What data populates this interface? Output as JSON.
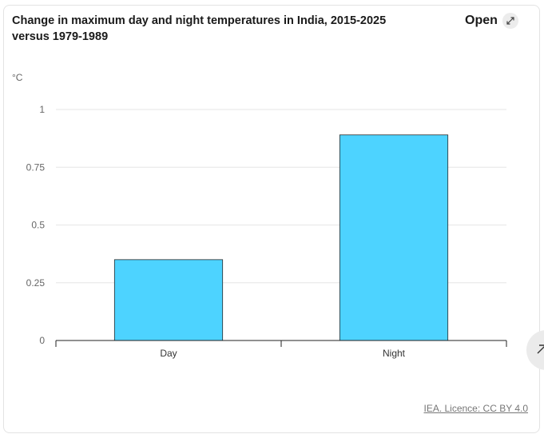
{
  "header": {
    "title": "Change in maximum day and night temperatures in India, 2015-2025 versus 1979-1989",
    "open_label": "Open",
    "open_icon": "expand-arrow-icon"
  },
  "footer": {
    "source": "IEA. Licence: CC BY 4.0"
  },
  "scroll_button_icon": "arrow-up-icon",
  "chart_data": {
    "type": "bar",
    "title": "Change in maximum day and night temperatures in India, 2015-2025 versus 1979-1989",
    "ylabel": "°C",
    "xlabel": "",
    "categories": [
      "Day",
      "Night"
    ],
    "values": [
      0.35,
      0.89
    ],
    "ylim": [
      0,
      1
    ],
    "yticks": [
      0,
      0.25,
      0.5,
      0.75,
      1
    ],
    "ytick_labels": [
      "0",
      "0.25",
      "0.5",
      "0.75",
      "1"
    ],
    "grid": true,
    "legend": "none",
    "colors": {
      "bar": "#4dd3ff",
      "bar_stroke": "#2a2a2a",
      "grid": "#e6e6e6",
      "axis": "#222222"
    }
  }
}
